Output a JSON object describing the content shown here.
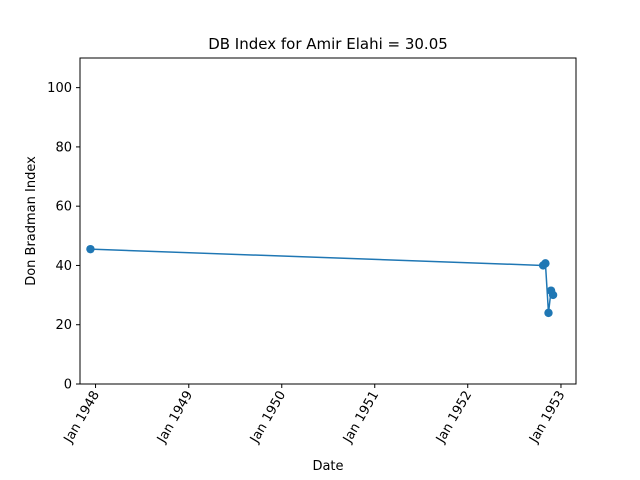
{
  "chart_data": {
    "type": "line",
    "title": "DB Index for Amir Elahi = 30.05",
    "xlabel": "Date",
    "ylabel": "Don Bradman Index",
    "ylim": [
      0,
      110
    ],
    "xlim": [
      "1947-11-01",
      "1953-03-01"
    ],
    "yticks": [
      0,
      20,
      40,
      60,
      80,
      100
    ],
    "xticks": [
      {
        "date": "1948-01-01",
        "label": "Jan 1948"
      },
      {
        "date": "1949-01-01",
        "label": "Jan 1949"
      },
      {
        "date": "1950-01-01",
        "label": "Jan 1950"
      },
      {
        "date": "1951-01-01",
        "label": "Jan 1951"
      },
      {
        "date": "1952-01-01",
        "label": "Jan 1952"
      },
      {
        "date": "1953-01-01",
        "label": "Jan 1953"
      }
    ],
    "grid": false,
    "series": [
      {
        "color": "#1f77b4",
        "points": [
          {
            "x": "1947-12-12",
            "y": 45.5
          },
          {
            "x": "1952-10-23",
            "y": 40.0
          },
          {
            "x": "1952-11-01",
            "y": 40.7
          },
          {
            "x": "1952-11-13",
            "y": 24.0
          },
          {
            "x": "1952-11-23",
            "y": 31.5
          },
          {
            "x": "1952-12-01",
            "y": 30.05
          }
        ]
      }
    ]
  }
}
